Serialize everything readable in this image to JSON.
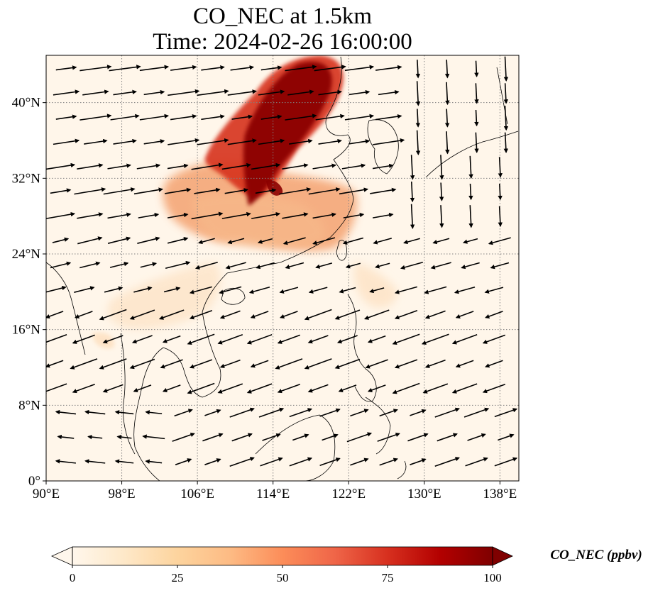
{
  "title": {
    "line1": "CO_NEC at 1.5km",
    "line2": "Time: 2024-02-26 16:00:00"
  },
  "map": {
    "projection": "PlateCarree",
    "lon_range": [
      90,
      140
    ],
    "lat_range": [
      0,
      45
    ],
    "gridlines": "dotted",
    "x_ticks": [
      {
        "value": 90,
        "label": "90°E"
      },
      {
        "value": 98,
        "label": "98°E"
      },
      {
        "value": 106,
        "label": "106°E"
      },
      {
        "value": 114,
        "label": "114°E"
      },
      {
        "value": 122,
        "label": "122°E"
      },
      {
        "value": 130,
        "label": "130°E"
      },
      {
        "value": 138,
        "label": "138°E"
      }
    ],
    "y_ticks": [
      {
        "value": 0,
        "label": "0°"
      },
      {
        "value": 8,
        "label": "8°N"
      },
      {
        "value": 16,
        "label": "16°N"
      },
      {
        "value": 24,
        "label": "24°N"
      },
      {
        "value": 32,
        "label": "32°N"
      },
      {
        "value": 40,
        "label": "40°N"
      }
    ],
    "wind_vectors": "black arrows showing 1.5km wind; westerlies north of ~25°N, northeasterly/easterly flow over South China Sea and Philippine Sea"
  },
  "colorbar": {
    "label": "CO_NEC (ppbv)",
    "colormap": "OrRd",
    "range": [
      0,
      100
    ],
    "extend": "both",
    "ticks": [
      {
        "value": 0,
        "label": "0"
      },
      {
        "value": 25,
        "label": "25"
      },
      {
        "value": 50,
        "label": "50"
      },
      {
        "value": 75,
        "label": "75"
      },
      {
        "value": 100,
        "label": "100"
      }
    ]
  },
  "colors": {
    "cmap_stops": [
      "#fff7ec",
      "#fee8c8",
      "#fdd49e",
      "#fdbb84",
      "#fc8d59",
      "#ef6548",
      "#d7301f",
      "#b30000",
      "#7f0000"
    ],
    "land_outline": "#000000",
    "grid": "#808080"
  }
}
